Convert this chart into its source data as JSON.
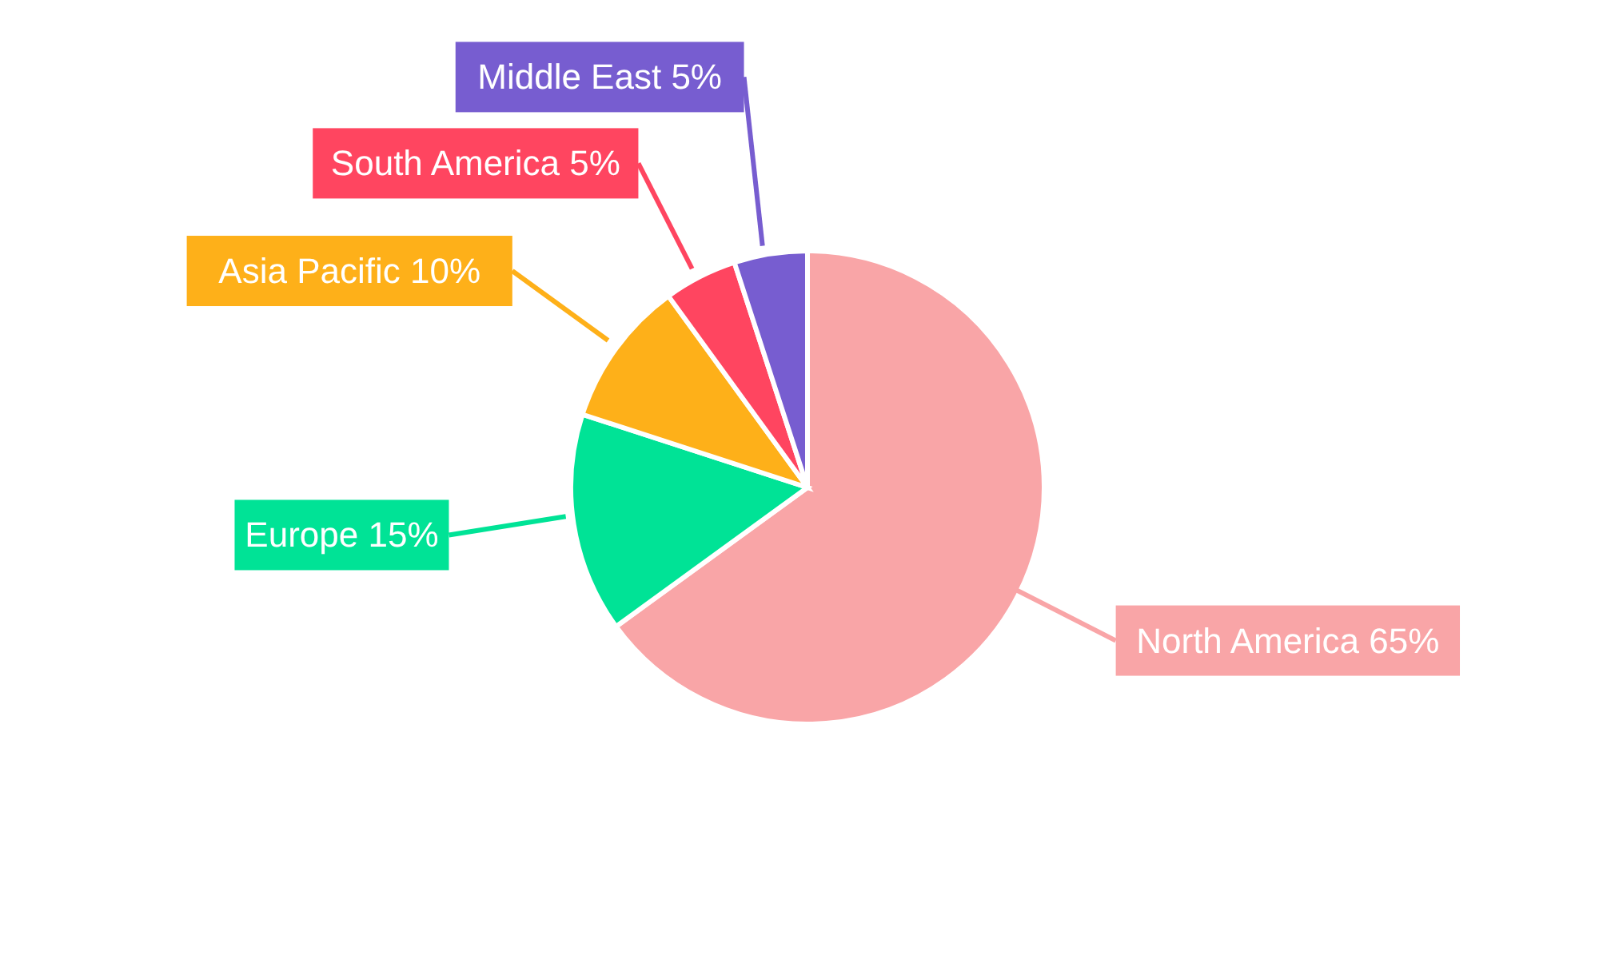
{
  "chart_data": {
    "type": "pie",
    "categories": [
      "North America",
      "Europe",
      "Asia Pacific",
      "South America",
      "Middle East"
    ],
    "values": [
      65,
      15,
      10,
      5,
      5
    ],
    "value_labels": [
      "65%",
      "15%",
      "10%",
      "5%",
      "5%"
    ],
    "colors": [
      "#f9a5a7",
      "#00e396",
      "#feb019",
      "#ff4560",
      "#775dd0"
    ],
    "legend": false
  }
}
